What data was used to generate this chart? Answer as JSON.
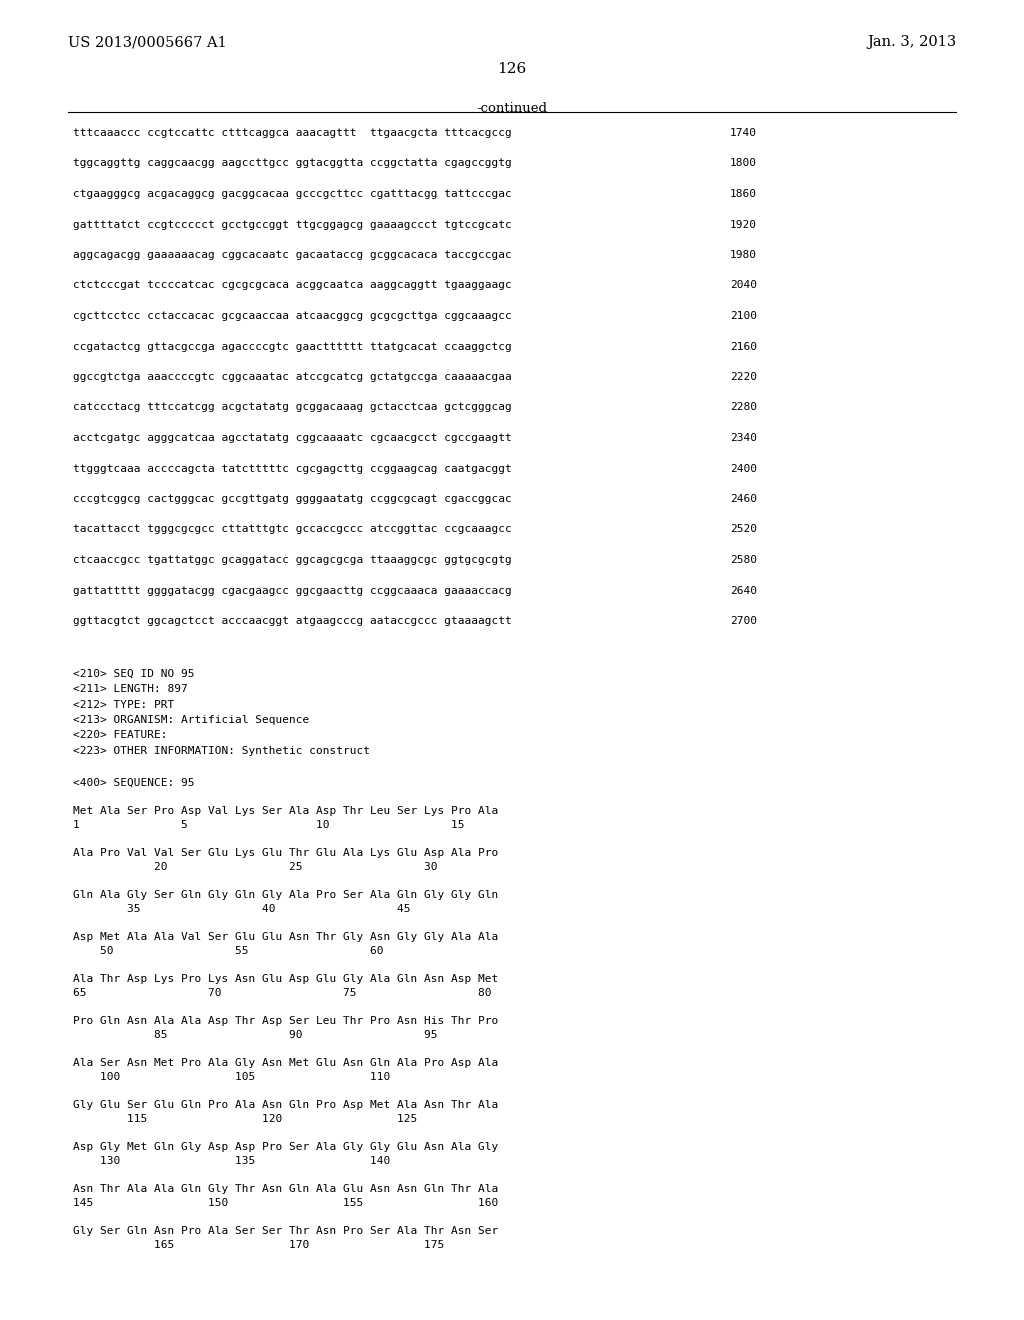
{
  "header_left": "US 2013/0005667 A1",
  "header_right": "Jan. 3, 2013",
  "page_number": "126",
  "continued": "-continued",
  "background_color": "#ffffff",
  "text_color": "#000000",
  "dna_lines": [
    [
      "tttcaaaccc ccgtccattc ctttcaggca aaacagttt  ttgaacgcta tttcacgccg",
      "1740"
    ],
    [
      "tggcaggttg caggcaacgg aagccttgcc ggtacggtta ccggctatta cgagccggtg",
      "1800"
    ],
    [
      "ctgaagggcg acgacaggcg gacggcacaa gcccgcttcc cgatttacgg tattcccgac",
      "1860"
    ],
    [
      "gattttatct ccgtccccct gcctgccggt ttgcggagcg gaaaagccct tgtccgcatc",
      "1920"
    ],
    [
      "aggcagacgg gaaaaaacag cggcacaatc gacaataccg gcggcacaca taccgccgac",
      "1980"
    ],
    [
      "ctctcccgat tccccatcac cgcgcgcaca acggcaatca aaggcaggtt tgaaggaagc",
      "2040"
    ],
    [
      "cgcttcctcc cctaccacac gcgcaaccaa atcaacggcg gcgcgcttga cggcaaagcc",
      "2100"
    ],
    [
      "ccgatactcg gttacgccga agaccccgtc gaactttttt ttatgcacat ccaaggctcg",
      "2160"
    ],
    [
      "ggccgtctga aaaccccgtc cggcaaatac atccgcatcg gctatgccga caaaaacgaa",
      "2220"
    ],
    [
      "catccctacg tttccatcgg acgctatatg gcggacaaag gctacctcaa gctcgggcag",
      "2280"
    ],
    [
      "acctcgatgc agggcatcaa agcctatatg cggcaaaatc cgcaacgcct cgccgaagtt",
      "2340"
    ],
    [
      "ttgggtcaaa accccagcta tatctttttc cgcgagcttg ccggaagcag caatgacggt",
      "2400"
    ],
    [
      "cccgtcggcg cactgggcac gccgttgatg ggggaatatg ccggcgcagt cgaccggcac",
      "2460"
    ],
    [
      "tacattacct tgggcgcgcc cttatttgtc gccaccgccc atccggttac ccgcaaagcc",
      "2520"
    ],
    [
      "ctcaaccgcc tgattatggc gcaggatacc ggcagcgcga ttaaaggcgc ggtgcgcgtg",
      "2580"
    ],
    [
      "gattattttt ggggatacgg cgacgaagcc ggcgaacttg ccggcaaaca gaaaaccacg",
      "2640"
    ],
    [
      "ggttacgtct ggcagctcct acccaacggt atgaagcccg aataccgccc gtaaaagctt",
      "2700"
    ]
  ],
  "metadata_lines": [
    "<210> SEQ ID NO 95",
    "<211> LENGTH: 897",
    "<212> TYPE: PRT",
    "<213> ORGANISM: Artificial Sequence",
    "<220> FEATURE:",
    "<223> OTHER INFORMATION: Synthetic construct"
  ],
  "sequence_header": "<400> SEQUENCE: 95",
  "protein_blocks": [
    {
      "line1": "Met Ala Ser Pro Asp Val Lys Ser Ala Asp Thr Leu Ser Lys Pro Ala",
      "line2": "1               5                   10                  15"
    },
    {
      "line1": "Ala Pro Val Val Ser Glu Lys Glu Thr Glu Ala Lys Glu Asp Ala Pro",
      "line2": "            20                  25                  30"
    },
    {
      "line1": "Gln Ala Gly Ser Gln Gly Gln Gly Ala Pro Ser Ala Gln Gly Gly Gln",
      "line2": "        35                  40                  45"
    },
    {
      "line1": "Asp Met Ala Ala Val Ser Glu Glu Asn Thr Gly Asn Gly Gly Ala Ala",
      "line2": "    50                  55                  60"
    },
    {
      "line1": "Ala Thr Asp Lys Pro Lys Asn Glu Asp Glu Gly Ala Gln Asn Asp Met",
      "line2": "65                  70                  75                  80"
    },
    {
      "line1": "Pro Gln Asn Ala Ala Asp Thr Asp Ser Leu Thr Pro Asn His Thr Pro",
      "line2": "            85                  90                  95"
    },
    {
      "line1": "Ala Ser Asn Met Pro Ala Gly Asn Met Glu Asn Gln Ala Pro Asp Ala",
      "line2": "    100                 105                 110"
    },
    {
      "line1": "Gly Glu Ser Glu Gln Pro Ala Asn Gln Pro Asp Met Ala Asn Thr Ala",
      "line2": "        115                 120                 125"
    },
    {
      "line1": "Asp Gly Met Gln Gly Asp Asp Pro Ser Ala Gly Gly Glu Asn Ala Gly",
      "line2": "    130                 135                 140"
    },
    {
      "line1": "Asn Thr Ala Ala Gln Gly Thr Asn Gln Ala Glu Asn Asn Gln Thr Ala",
      "line2": "145                 150                 155                 160"
    },
    {
      "line1": "Gly Ser Gln Asn Pro Ala Ser Ser Thr Asn Pro Ser Ala Thr Asn Ser",
      "line2": "            165                 170                 175"
    }
  ]
}
